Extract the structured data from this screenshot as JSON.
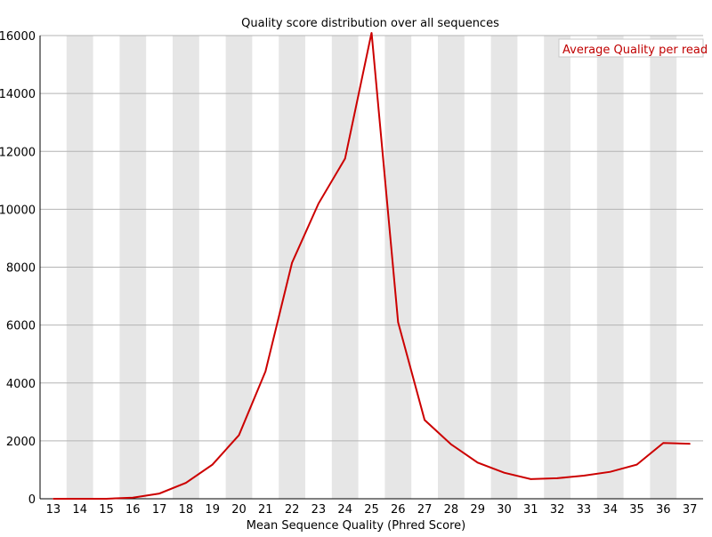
{
  "chart_data": {
    "type": "line",
    "title": "Quality score distribution over all sequences",
    "xlabel": "Mean Sequence Quality (Phred Score)",
    "ylabel": "",
    "categories": [
      "13",
      "14",
      "15",
      "16",
      "17",
      "18",
      "19",
      "20",
      "21",
      "22",
      "23",
      "24",
      "25",
      "26",
      "27",
      "28",
      "29",
      "30",
      "31",
      "32",
      "33",
      "34",
      "35",
      "36",
      "37"
    ],
    "y_ticks": [
      "0",
      "2000",
      "4000",
      "6000",
      "8000",
      "10000",
      "12000",
      "14000",
      "16000"
    ],
    "ylim": [
      0,
      16000
    ],
    "grid": true,
    "band_shading": "alternating vertical bands",
    "legend": {
      "position": "top-right",
      "entries": [
        "Average Quality per read"
      ]
    },
    "series": [
      {
        "name": "Average Quality per read",
        "color": "#cc0000",
        "values": [
          0,
          0,
          0,
          40,
          180,
          550,
          1180,
          2200,
          4400,
          8150,
          10200,
          11750,
          16100,
          6100,
          2720,
          1880,
          1250,
          900,
          680,
          710,
          800,
          930,
          1180,
          1930,
          1900
        ]
      }
    ]
  }
}
